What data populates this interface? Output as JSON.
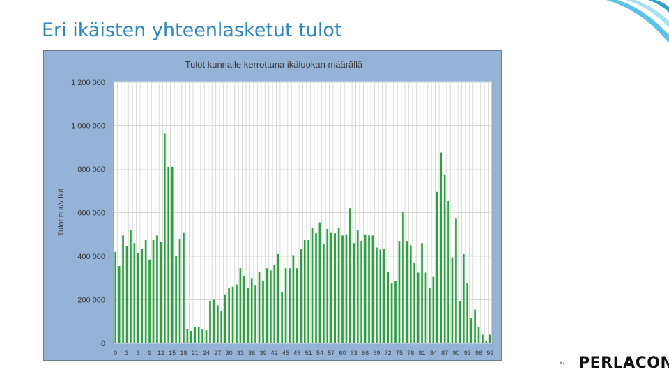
{
  "slide": {
    "title": "Eri ikäisten yhteenlasketut tulot",
    "page_number": "87",
    "logo_text": "PERLACON"
  },
  "colors": {
    "title": "#2e86c1",
    "chart_background": "#95b3d7",
    "plot_background": "#ffffff",
    "bar": "#2ea043",
    "gridline": "#d9d9d9",
    "swoosh": "#5bc3e8"
  },
  "chart_data": {
    "type": "bar",
    "title": "Tulot kunnalle kerrottuna ikäluokan määrällä",
    "xlabel": "",
    "ylabel": "Tulot eur/v ikä",
    "ylim": [
      0,
      1200000
    ],
    "yticks": [
      0,
      200000,
      400000,
      600000,
      800000,
      1000000,
      1200000
    ],
    "ytick_labels": [
      "0",
      "200 000",
      "400 000",
      "600 000",
      "800 000",
      "1 000 000",
      "1 200 000"
    ],
    "xtick_labels": [
      "0",
      "3",
      "6",
      "9",
      "12",
      "15",
      "18",
      "21",
      "24",
      "27",
      "30",
      "33",
      "36",
      "39",
      "42",
      "45",
      "48",
      "51",
      "54",
      "57",
      "60",
      "63",
      "66",
      "69",
      "72",
      "75",
      "78",
      "81",
      "84",
      "87",
      "90",
      "93",
      "96",
      "99"
    ],
    "grid": true,
    "legend": "none",
    "categories": [
      0,
      1,
      2,
      3,
      4,
      5,
      6,
      7,
      8,
      9,
      10,
      11,
      12,
      13,
      14,
      15,
      16,
      17,
      18,
      19,
      20,
      21,
      22,
      23,
      24,
      25,
      26,
      27,
      28,
      29,
      30,
      31,
      32,
      33,
      34,
      35,
      36,
      37,
      38,
      39,
      40,
      41,
      42,
      43,
      44,
      45,
      46,
      47,
      48,
      49,
      50,
      51,
      52,
      53,
      54,
      55,
      56,
      57,
      58,
      59,
      60,
      61,
      62,
      63,
      64,
      65,
      66,
      67,
      68,
      69,
      70,
      71,
      72,
      73,
      74,
      75,
      76,
      77,
      78,
      79,
      80,
      81,
      82,
      83,
      84,
      85,
      86,
      87,
      88,
      89,
      90,
      91,
      92,
      93,
      94,
      95,
      96,
      97,
      98,
      99
    ],
    "values": [
      420000,
      355000,
      495000,
      445000,
      520000,
      460000,
      415000,
      435000,
      475000,
      385000,
      475000,
      495000,
      465000,
      965000,
      810000,
      810000,
      400000,
      480000,
      510000,
      65000,
      55000,
      75000,
      75000,
      65000,
      60000,
      195000,
      200000,
      175000,
      150000,
      225000,
      255000,
      260000,
      270000,
      345000,
      310000,
      255000,
      300000,
      265000,
      330000,
      285000,
      345000,
      335000,
      360000,
      410000,
      235000,
      345000,
      345000,
      405000,
      345000,
      435000,
      475000,
      475000,
      530000,
      505000,
      555000,
      455000,
      525000,
      510000,
      505000,
      530000,
      495000,
      500000,
      620000,
      460000,
      520000,
      470000,
      500000,
      495000,
      495000,
      440000,
      430000,
      435000,
      330000,
      275000,
      285000,
      470000,
      605000,
      470000,
      450000,
      370000,
      325000,
      460000,
      325000,
      255000,
      305000,
      695000,
      875000,
      775000,
      655000,
      395000,
      575000,
      195000,
      410000,
      275000,
      115000,
      155000,
      75000,
      40000,
      10000,
      40000
    ]
  }
}
